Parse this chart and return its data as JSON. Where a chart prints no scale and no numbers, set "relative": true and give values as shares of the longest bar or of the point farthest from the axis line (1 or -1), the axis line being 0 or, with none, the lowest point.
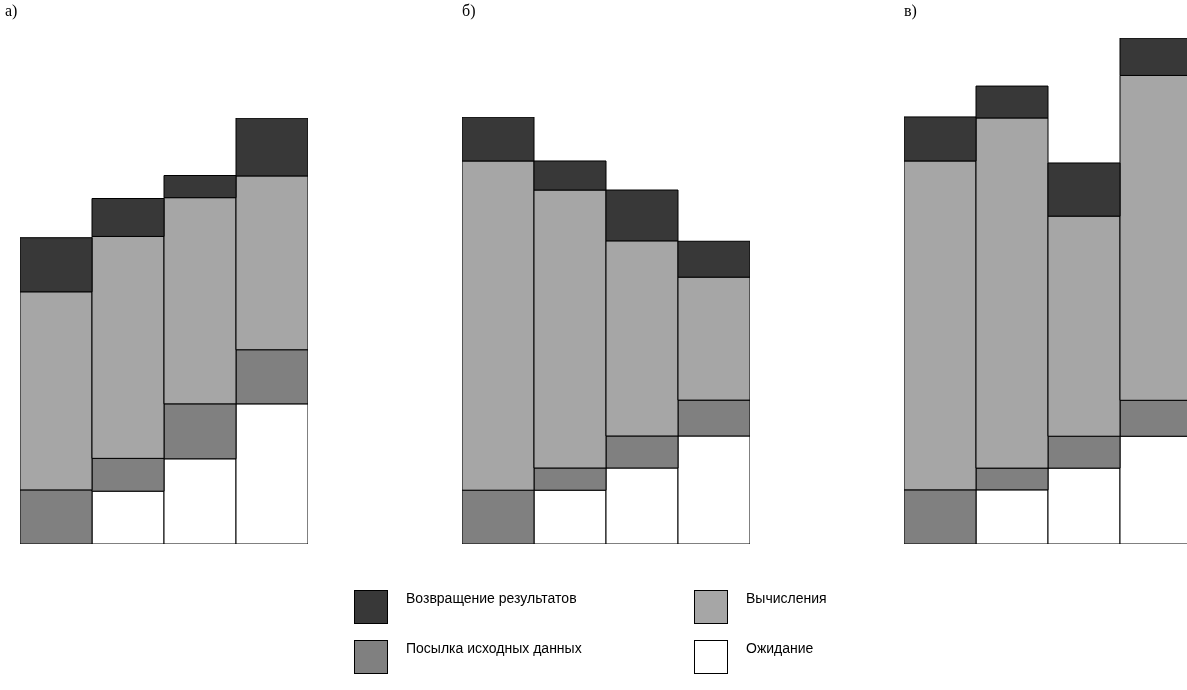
{
  "chart_data": [
    {
      "type": "bar",
      "title": "а)",
      "categories": [
        null,
        null,
        null,
        null
      ],
      "stacked": true,
      "relative": true,
      "series": [
        {
          "color": "#ffffff",
          "values": [
            0,
            0.124,
            0.2,
            0.329
          ]
        },
        {
          "color": "#808080",
          "values": [
            0.127,
            0.077,
            0.129,
            0.127
          ]
        },
        {
          "color": "#a6a6a6",
          "values": [
            0.465,
            0.521,
            0.484,
            0.408
          ]
        },
        {
          "color": "#383838",
          "values": [
            0.127,
            0.089,
            0.052,
            0.136
          ]
        }
      ]
    },
    {
      "type": "bar",
      "title": "б)",
      "categories": [
        null,
        null,
        null,
        null
      ],
      "stacked": true,
      "relative": true,
      "legend": "bottom",
      "series": [
        {
          "name": "Ожидание",
          "color": "#ffffff",
          "values": [
            0,
            0.126,
            0.178,
            0.253
          ]
        },
        {
          "name": "Посылка исходных данных",
          "color": "#808080",
          "values": [
            0.126,
            0.052,
            0.075,
            0.084
          ]
        },
        {
          "name": "Вычисления",
          "color": "#a6a6a6",
          "values": [
            0.771,
            0.651,
            0.457,
            0.288
          ]
        },
        {
          "name": "Возвращение результатов",
          "color": "#383838",
          "values": [
            0.103,
            0.068,
            0.119,
            0.084
          ]
        }
      ]
    },
    {
      "type": "bar",
      "title": "в)",
      "categories": [
        null,
        null,
        null,
        null
      ],
      "stacked": true,
      "relative": true,
      "series": [
        {
          "color": "#ffffff",
          "values": [
            0,
            0.107,
            0.15,
            0.213
          ]
        },
        {
          "color": "#808080",
          "values": [
            0.107,
            0.043,
            0.063,
            0.071
          ]
        },
        {
          "color": "#a6a6a6",
          "values": [
            0.65,
            0.692,
            0.435,
            0.642
          ]
        },
        {
          "color": "#383838",
          "values": [
            0.087,
            0.063,
            0.105,
            0.074
          ]
        }
      ]
    }
  ]
}
